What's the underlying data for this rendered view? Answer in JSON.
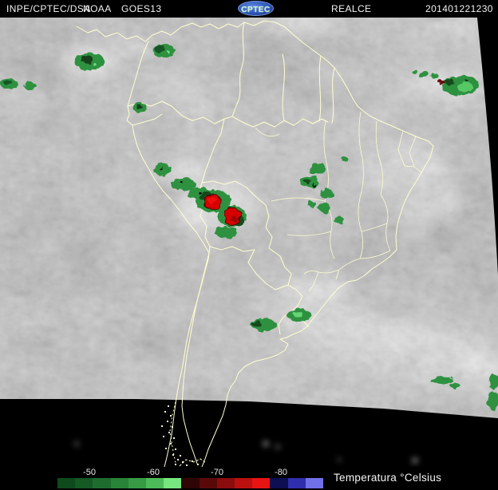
{
  "header": {
    "agency": "INPE/CPTEC/DSA",
    "operator": "NOAA",
    "satellite": "GOES13",
    "logo_text": "CPTEC",
    "product": "REALCE",
    "timestamp": "201401221230"
  },
  "colorbar": {
    "title": "Temperatura °Celsius",
    "tick_labels": [
      "-50",
      "-60",
      "-70",
      "-80"
    ],
    "segments": [
      "#0e4a1b",
      "#155925",
      "#1e6c2e",
      "#298338",
      "#379b45",
      "#4dbb59",
      "#78e680",
      "#2f0505",
      "#5a0909",
      "#8a0d0d",
      "#bb1010",
      "#e81414",
      "#0e0e52",
      "#2e2eae",
      "#7070e8"
    ],
    "palette_colors": {
      "cold_cloud_green": "#2f9140",
      "very_cold_red": "#d60000",
      "border_yellow": "#ffffd0"
    }
  }
}
